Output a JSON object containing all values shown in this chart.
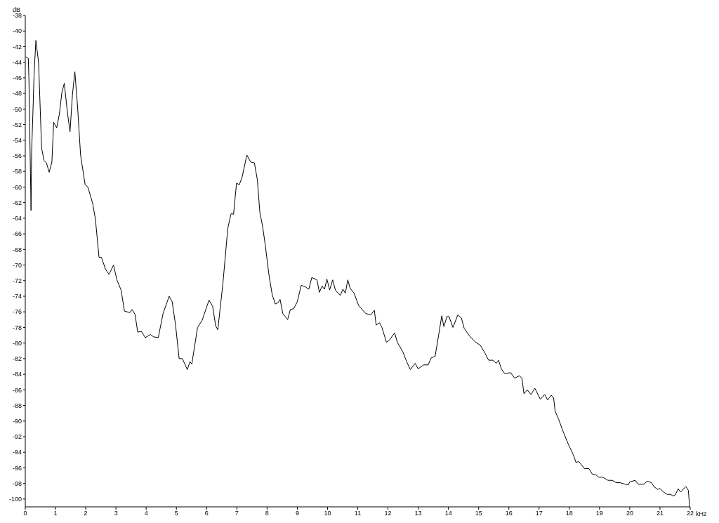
{
  "chart_data": {
    "type": "line",
    "xlabel": "kHz",
    "ylabel": "dB",
    "xlim": [
      0,
      22
    ],
    "xticks": [
      0,
      1,
      2,
      3,
      4,
      5,
      6,
      7,
      8,
      9,
      10,
      11,
      12,
      13,
      14,
      15,
      16,
      17,
      18,
      19,
      20,
      21,
      22
    ],
    "ylim": [
      -101,
      -38
    ],
    "yticks": [
      -38,
      -40,
      -42,
      -44,
      -46,
      -48,
      -50,
      -52,
      -54,
      -56,
      -58,
      -60,
      -62,
      -64,
      -66,
      -68,
      -70,
      -72,
      -74,
      -76,
      -78,
      -80,
      -82,
      -84,
      -86,
      -88,
      -90,
      -92,
      -94,
      -96,
      -98,
      -100
    ],
    "grid": false,
    "legend": false,
    "marker": "none",
    "line_style": "solid",
    "series": [
      {
        "color": "#000000",
        "x": [
          0.02,
          0.1,
          0.12,
          0.14,
          0.16,
          0.18,
          0.19,
          0.21,
          0.25,
          0.29,
          0.35,
          0.44,
          0.5,
          0.54,
          0.62,
          0.7,
          0.79,
          0.88,
          0.94,
          1.04,
          1.13,
          1.21,
          1.29,
          1.4,
          1.48,
          1.56,
          1.64,
          1.73,
          1.83,
          1.98,
          2.07,
          2.23,
          2.32,
          2.44,
          2.52,
          2.65,
          2.77,
          2.92,
          3.03,
          3.17,
          3.28,
          3.46,
          3.53,
          3.63,
          3.72,
          3.84,
          3.97,
          4.14,
          4.24,
          4.4,
          4.56,
          4.76,
          4.86,
          4.97,
          5.09,
          5.2,
          5.36,
          5.45,
          5.51,
          5.7,
          5.85,
          6.08,
          6.2,
          6.3,
          6.37,
          6.54,
          6.7,
          6.81,
          6.89,
          6.99,
          7.08,
          7.17,
          7.33,
          7.46,
          7.58,
          7.68,
          7.76,
          7.85,
          7.94,
          8.06,
          8.17,
          8.27,
          8.37,
          8.43,
          8.52,
          8.68,
          8.77,
          8.88,
          9.0,
          9.13,
          9.27,
          9.38,
          9.48,
          9.65,
          9.73,
          9.82,
          9.9,
          9.98,
          10.07,
          10.17,
          10.26,
          10.42,
          10.51,
          10.59,
          10.67,
          10.75,
          10.88,
          11.03,
          11.26,
          11.43,
          11.55,
          11.61,
          11.72,
          11.8,
          11.95,
          12.05,
          12.22,
          12.31,
          12.49,
          12.62,
          12.74,
          12.9,
          13.0,
          13.18,
          13.33,
          13.43,
          13.56,
          13.68,
          13.78,
          13.85,
          13.95,
          14.02,
          14.15,
          14.31,
          14.43,
          14.52,
          14.68,
          14.87,
          15.06,
          15.21,
          15.33,
          15.48,
          15.58,
          15.66,
          15.75,
          15.86,
          16.06,
          16.19,
          16.35,
          16.43,
          16.5,
          16.61,
          16.73,
          16.86,
          17.04,
          17.19,
          17.28,
          17.4,
          17.48,
          17.53,
          17.65,
          17.78,
          17.97,
          18.13,
          18.22,
          18.32,
          18.5,
          18.65,
          18.76,
          18.88,
          18.97,
          19.11,
          19.28,
          19.42,
          19.55,
          19.68,
          19.85,
          19.95,
          20.0,
          20.18,
          20.28,
          20.47,
          20.58,
          20.72,
          20.8,
          20.93,
          20.98,
          21.12,
          21.24,
          21.35,
          21.43,
          21.5,
          21.6,
          21.68,
          21.86,
          21.94,
          21.98
        ],
        "values": [
          -43.3,
          -43.5,
          -46,
          -50.8,
          -55.5,
          -60.4,
          -63,
          -55.5,
          -50.8,
          -45.7,
          -41.2,
          -44,
          -50.6,
          -55,
          -56.6,
          -56.9,
          -58.1,
          -56.8,
          -51.7,
          -52.4,
          -50.6,
          -47.9,
          -46.7,
          -50.6,
          -52.9,
          -48.2,
          -45.2,
          -49.7,
          -55.9,
          -59.7,
          -60,
          -62.1,
          -64.1,
          -69,
          -69,
          -70.5,
          -71.2,
          -70,
          -71.9,
          -73.2,
          -75.9,
          -76.1,
          -75.7,
          -76.3,
          -78.6,
          -78.5,
          -79.3,
          -78.9,
          -79.2,
          -79.3,
          -76.2,
          -74,
          -74.7,
          -77.6,
          -82,
          -82,
          -83.4,
          -82.4,
          -82.7,
          -78,
          -77.1,
          -74.5,
          -75.3,
          -77.8,
          -78.3,
          -72.3,
          -65.3,
          -63.4,
          -63.5,
          -59.5,
          -59.7,
          -58.8,
          -55.9,
          -56.8,
          -56.9,
          -59.1,
          -63.2,
          -65,
          -67.4,
          -71.2,
          -73.8,
          -75,
          -74.8,
          -74.4,
          -76.2,
          -77,
          -75.7,
          -75.6,
          -74.7,
          -72.6,
          -72.8,
          -73.1,
          -71.6,
          -71.9,
          -73.5,
          -72.7,
          -73.1,
          -71.8,
          -73.2,
          -71.9,
          -73.2,
          -73.9,
          -73.1,
          -73.6,
          -71.9,
          -73,
          -73.6,
          -75.2,
          -76.2,
          -76.4,
          -75.8,
          -77.7,
          -77.4,
          -78,
          -79.9,
          -79.6,
          -78.7,
          -79.9,
          -81.1,
          -82.4,
          -83.4,
          -82.6,
          -83.3,
          -82.8,
          -82.8,
          -81.9,
          -81.7,
          -78.9,
          -76.5,
          -77.9,
          -76.6,
          -76.6,
          -78,
          -76.4,
          -76.8,
          -78.1,
          -79,
          -79.8,
          -80.3,
          -81.3,
          -82.2,
          -82.2,
          -82.6,
          -82.2,
          -83.3,
          -83.9,
          -83.8,
          -84.5,
          -84.2,
          -84.5,
          -86.5,
          -86,
          -86.6,
          -85.8,
          -87.2,
          -86.6,
          -87.3,
          -86.7,
          -87,
          -88.7,
          -89.8,
          -91.2,
          -93,
          -94.3,
          -95.3,
          -95.2,
          -96.1,
          -96.1,
          -96.8,
          -96.9,
          -97.2,
          -97.2,
          -97.6,
          -97.6,
          -97.9,
          -97.9,
          -98.1,
          -98.2,
          -97.8,
          -97.6,
          -98.1,
          -98.1,
          -97.7,
          -97.9,
          -98.4,
          -98.8,
          -98.6,
          -99.1,
          -99.4,
          -99.4,
          -99.6,
          -99.5,
          -98.7,
          -99.1,
          -98.4,
          -98.9,
          -101
        ]
      }
    ]
  }
}
